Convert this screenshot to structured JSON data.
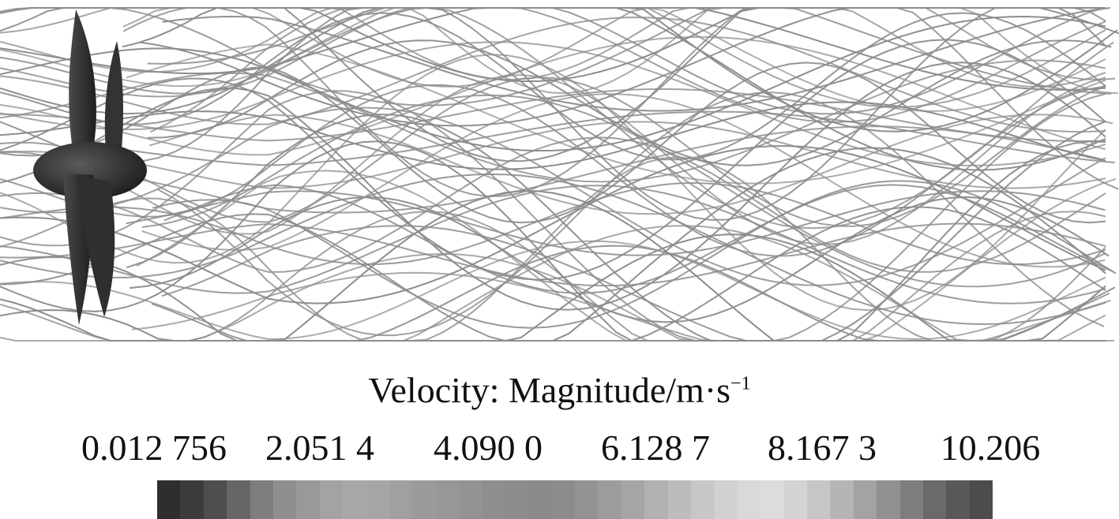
{
  "legend": {
    "title": "Velocity: Magnitude/m·s",
    "title_superscript": "−1",
    "ticks": [
      "0.012 756",
      "2.051 4",
      "4.090 0",
      "6.128 7",
      "8.167 3",
      "10.206"
    ],
    "colorbar_colors": [
      "#2e2e2e",
      "#3c3c3c",
      "#4e4e4e",
      "#666666",
      "#7e7e7e",
      "#8f8f8f",
      "#999999",
      "#a3a3a3",
      "#a8a8a8",
      "#a6a6a6",
      "#a0a0a0",
      "#9b9b9b",
      "#979797",
      "#939393",
      "#8f8f8f",
      "#8c8c8c",
      "#8a8a8a",
      "#8c8c8c",
      "#939393",
      "#9c9c9c",
      "#a6a6a6",
      "#b1b1b1",
      "#bcbcbc",
      "#c7c7c7",
      "#d1d1d1",
      "#d9d9d9",
      "#dcdcdc",
      "#d4d4d4",
      "#c6c6c6",
      "#b5b5b5",
      "#a3a3a3",
      "#919191",
      "#7e7e7e",
      "#6a6a6a",
      "#585858",
      "#4c4c4c"
    ]
  },
  "scene": {
    "streamline_color": "#8c8c8c",
    "propeller_color": "#2a2a2a"
  }
}
